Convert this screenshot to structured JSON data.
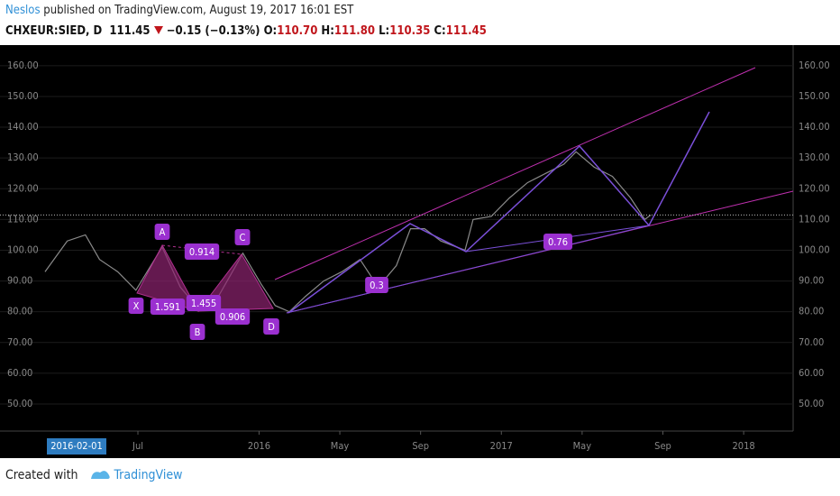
{
  "header": {
    "author": "Neslos",
    "published": "published on TradingView.com, August 19, 2017 16:01 EST"
  },
  "ticker": {
    "symbol": "CHXEUR:SIED, D",
    "change": "−0.15 (−0.13%)",
    "open_label": "O:",
    "open": "110.70",
    "high_label": "H:",
    "high": "111.80",
    "low_label": "L:",
    "low": "110.35",
    "close_label": "C:",
    "close": "111.45"
  },
  "chart_data": {
    "type": "line",
    "color": "#8a8a8a",
    "last_price": 111.45,
    "x": [
      0.4,
      1.5,
      2.4,
      3.1,
      4.0,
      4.9,
      6.2,
      7.1,
      8.0,
      8.9,
      10.2,
      11.1,
      11.8,
      12.5,
      13.3,
      14.2,
      15.1,
      16.0,
      16.9,
      17.8,
      18.5,
      19.2,
      20.0,
      21.2,
      21.6,
      22.5,
      23.4,
      24.3,
      25.2,
      26.1,
      26.7,
      27.6,
      28.5,
      29.4,
      30.1,
      30.4
    ],
    "values": [
      93,
      103,
      105,
      97,
      93,
      87,
      101,
      88,
      81,
      84,
      99,
      89,
      82,
      80,
      85,
      90,
      93,
      97,
      88,
      95,
      107,
      107,
      103,
      100,
      110,
      111,
      117,
      122,
      125,
      128,
      132,
      127,
      124,
      117,
      110,
      111.45
    ],
    "xlim": [
      -1.83,
      37.45
    ],
    "ylim": [
      41.2,
      166.7
    ],
    "xticks": [
      {
        "value": 5,
        "label": "Jul"
      },
      {
        "value": 11,
        "label": "2016"
      },
      {
        "value": 15,
        "label": "May"
      },
      {
        "value": 19,
        "label": "Sep"
      },
      {
        "value": 23,
        "label": "2017"
      },
      {
        "value": 27,
        "label": "May"
      },
      {
        "value": 31,
        "label": "Sep"
      },
      {
        "value": 35,
        "label": "2018"
      }
    ],
    "x_cursor_label": "2016-02-01",
    "yticks": [
      {
        "value": 50,
        "label": "50.00"
      },
      {
        "value": 60,
        "label": "60.00"
      },
      {
        "value": 70,
        "label": "70.00"
      },
      {
        "value": 80,
        "label": "80.00"
      },
      {
        "value": 90,
        "label": "90.00"
      },
      {
        "value": 100,
        "label": "100.00"
      },
      {
        "value": 110,
        "label": "110.00"
      },
      {
        "value": 120,
        "label": "120.00"
      },
      {
        "value": 130,
        "label": "130.00"
      },
      {
        "value": 140,
        "label": "140.00"
      },
      {
        "value": 150,
        "label": "150.00"
      },
      {
        "value": 160,
        "label": "160.00"
      }
    ],
    "annotations": [
      "X",
      "A",
      "B",
      "C",
      "D",
      "1.591",
      "0.914",
      "1.455",
      "0.906",
      "0.3",
      "0.76"
    ]
  },
  "footer": {
    "created": "Created with",
    "brand": "TradingView"
  }
}
